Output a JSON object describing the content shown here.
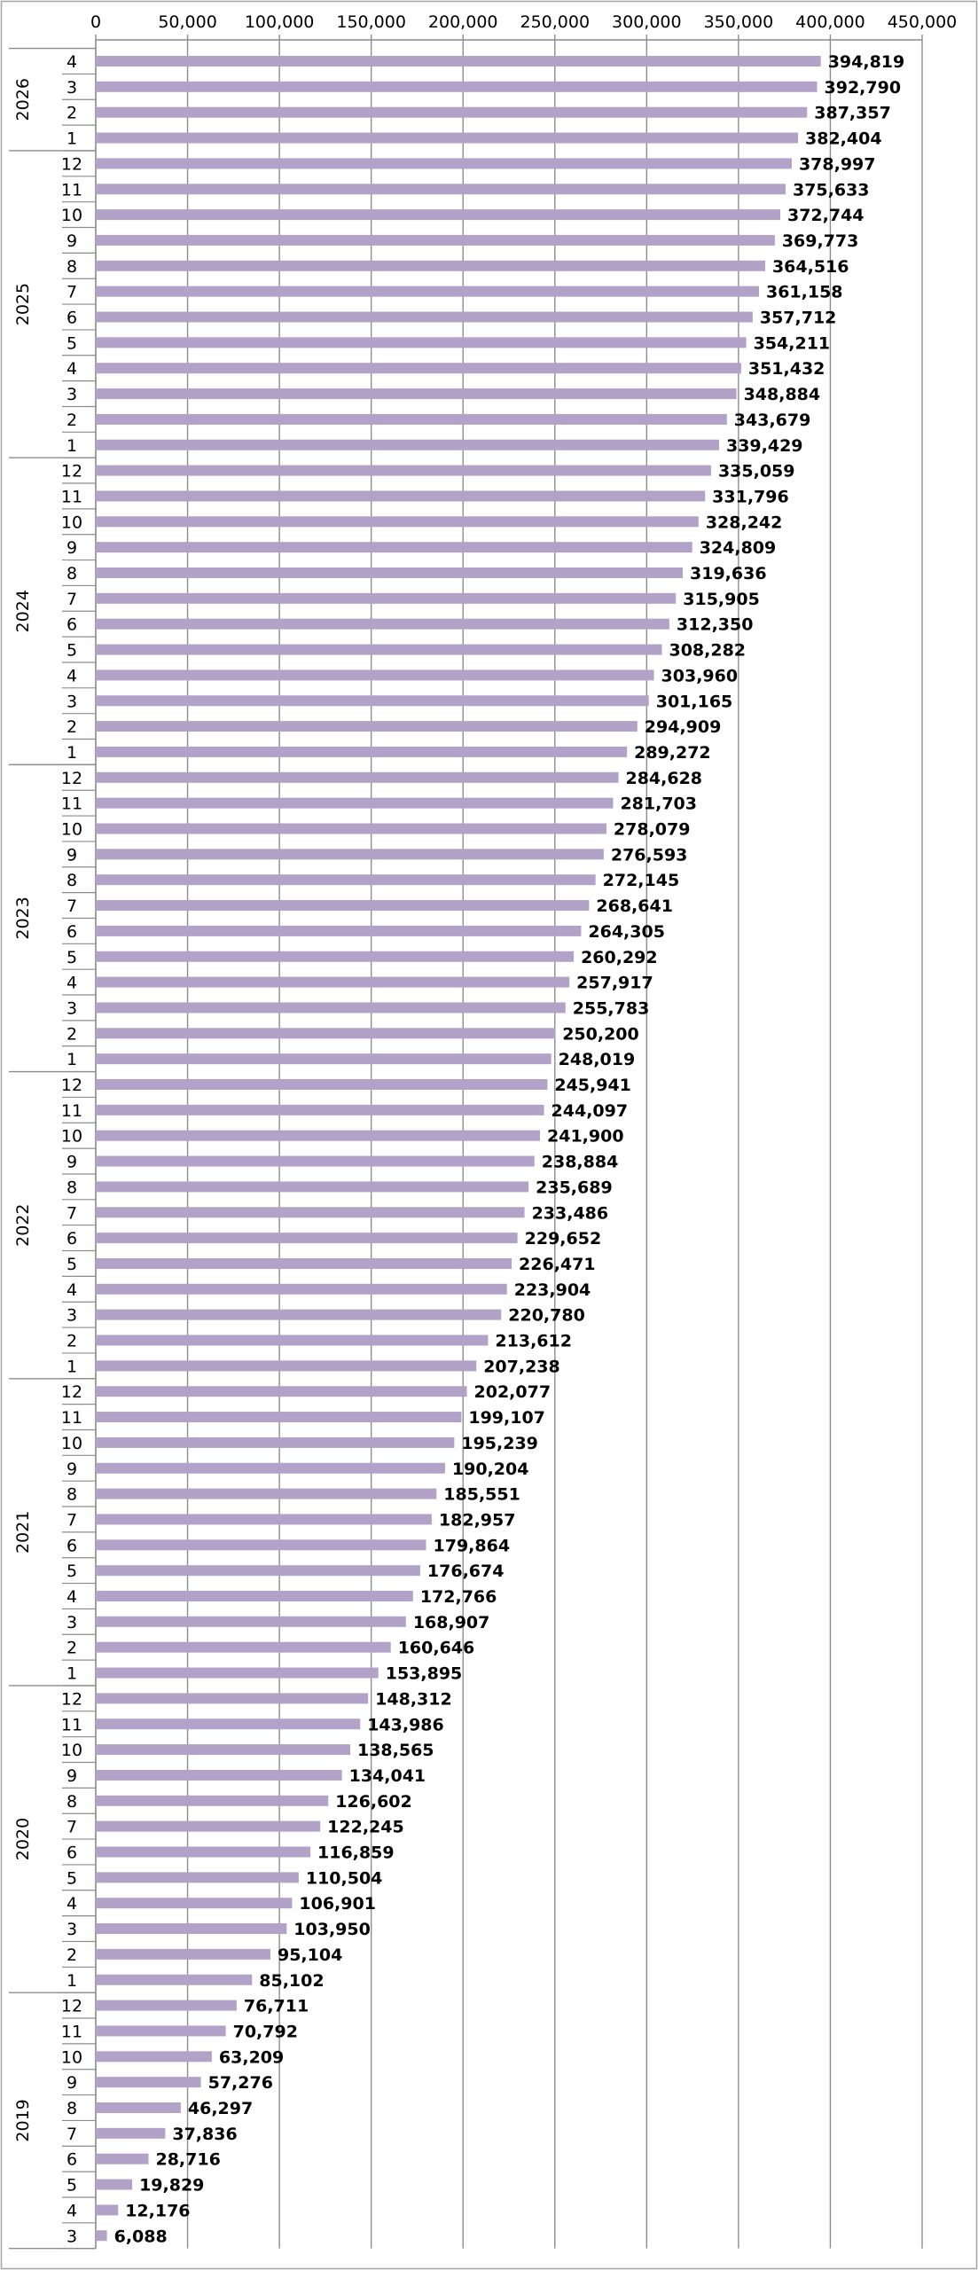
{
  "chart_data": {
    "type": "bar",
    "orientation": "horizontal",
    "title": "",
    "xlabel": "",
    "ylabel": "",
    "xlim": [
      0,
      450000
    ],
    "x_ticks": [
      "0",
      "50,000",
      "100,000",
      "150,000",
      "200,000",
      "250,000",
      "300,000",
      "350,000",
      "400,000",
      "450,000"
    ],
    "x_tick_values": [
      0,
      50000,
      100000,
      150000,
      200000,
      250000,
      300000,
      350000,
      400000,
      450000
    ],
    "grid": true,
    "bar_color": "#b3a2c7",
    "groups": [
      {
        "year": "2026",
        "bars": [
          {
            "month": "4",
            "value": 394819,
            "label": "394,819"
          },
          {
            "month": "3",
            "value": 392790,
            "label": "392,790"
          },
          {
            "month": "2",
            "value": 387357,
            "label": "387,357"
          },
          {
            "month": "1",
            "value": 382404,
            "label": "382,404"
          }
        ]
      },
      {
        "year": "2025",
        "bars": [
          {
            "month": "12",
            "value": 378997,
            "label": "378,997"
          },
          {
            "month": "11",
            "value": 375633,
            "label": "375,633"
          },
          {
            "month": "10",
            "value": 372744,
            "label": "372,744"
          },
          {
            "month": "9",
            "value": 369773,
            "label": "369,773"
          },
          {
            "month": "8",
            "value": 364516,
            "label": "364,516"
          },
          {
            "month": "7",
            "value": 361158,
            "label": "361,158"
          },
          {
            "month": "6",
            "value": 357712,
            "label": "357,712"
          },
          {
            "month": "5",
            "value": 354211,
            "label": "354,211"
          },
          {
            "month": "4",
            "value": 351432,
            "label": "351,432"
          },
          {
            "month": "3",
            "value": 348884,
            "label": "348,884"
          },
          {
            "month": "2",
            "value": 343679,
            "label": "343,679"
          },
          {
            "month": "1",
            "value": 339429,
            "label": "339,429"
          }
        ]
      },
      {
        "year": "2024",
        "bars": [
          {
            "month": "12",
            "value": 335059,
            "label": "335,059"
          },
          {
            "month": "11",
            "value": 331796,
            "label": "331,796"
          },
          {
            "month": "10",
            "value": 328242,
            "label": "328,242"
          },
          {
            "month": "9",
            "value": 324809,
            "label": "324,809"
          },
          {
            "month": "8",
            "value": 319636,
            "label": "319,636"
          },
          {
            "month": "7",
            "value": 315905,
            "label": "315,905"
          },
          {
            "month": "6",
            "value": 312350,
            "label": "312,350"
          },
          {
            "month": "5",
            "value": 308282,
            "label": "308,282"
          },
          {
            "month": "4",
            "value": 303960,
            "label": "303,960"
          },
          {
            "month": "3",
            "value": 301165,
            "label": "301,165"
          },
          {
            "month": "2",
            "value": 294909,
            "label": "294,909"
          },
          {
            "month": "1",
            "value": 289272,
            "label": "289,272"
          }
        ]
      },
      {
        "year": "2023",
        "bars": [
          {
            "month": "12",
            "value": 284628,
            "label": "284,628"
          },
          {
            "month": "11",
            "value": 281703,
            "label": "281,703"
          },
          {
            "month": "10",
            "value": 278079,
            "label": "278,079"
          },
          {
            "month": "9",
            "value": 276593,
            "label": "276,593"
          },
          {
            "month": "8",
            "value": 272145,
            "label": "272,145"
          },
          {
            "month": "7",
            "value": 268641,
            "label": "268,641"
          },
          {
            "month": "6",
            "value": 264305,
            "label": "264,305"
          },
          {
            "month": "5",
            "value": 260292,
            "label": "260,292"
          },
          {
            "month": "4",
            "value": 257917,
            "label": "257,917"
          },
          {
            "month": "3",
            "value": 255783,
            "label": "255,783"
          },
          {
            "month": "2",
            "value": 250200,
            "label": "250,200"
          },
          {
            "month": "1",
            "value": 248019,
            "label": "248,019"
          }
        ]
      },
      {
        "year": "2022",
        "bars": [
          {
            "month": "12",
            "value": 245941,
            "label": "245,941"
          },
          {
            "month": "11",
            "value": 244097,
            "label": "244,097"
          },
          {
            "month": "10",
            "value": 241900,
            "label": "241,900"
          },
          {
            "month": "9",
            "value": 238884,
            "label": "238,884"
          },
          {
            "month": "8",
            "value": 235689,
            "label": "235,689"
          },
          {
            "month": "7",
            "value": 233486,
            "label": "233,486"
          },
          {
            "month": "6",
            "value": 229652,
            "label": "229,652"
          },
          {
            "month": "5",
            "value": 226471,
            "label": "226,471"
          },
          {
            "month": "4",
            "value": 223904,
            "label": "223,904"
          },
          {
            "month": "3",
            "value": 220780,
            "label": "220,780"
          },
          {
            "month": "2",
            "value": 213612,
            "label": "213,612"
          },
          {
            "month": "1",
            "value": 207238,
            "label": "207,238"
          }
        ]
      },
      {
        "year": "2021",
        "bars": [
          {
            "month": "12",
            "value": 202077,
            "label": "202,077"
          },
          {
            "month": "11",
            "value": 199107,
            "label": "199,107"
          },
          {
            "month": "10",
            "value": 195239,
            "label": "195,239"
          },
          {
            "month": "9",
            "value": 190204,
            "label": "190,204"
          },
          {
            "month": "8",
            "value": 185551,
            "label": "185,551"
          },
          {
            "month": "7",
            "value": 182957,
            "label": "182,957"
          },
          {
            "month": "6",
            "value": 179864,
            "label": "179,864"
          },
          {
            "month": "5",
            "value": 176674,
            "label": "176,674"
          },
          {
            "month": "4",
            "value": 172766,
            "label": "172,766"
          },
          {
            "month": "3",
            "value": 168907,
            "label": "168,907"
          },
          {
            "month": "2",
            "value": 160646,
            "label": "160,646"
          },
          {
            "month": "1",
            "value": 153895,
            "label": "153,895"
          }
        ]
      },
      {
        "year": "2020",
        "bars": [
          {
            "month": "12",
            "value": 148312,
            "label": "148,312"
          },
          {
            "month": "11",
            "value": 143986,
            "label": "143,986"
          },
          {
            "month": "10",
            "value": 138565,
            "label": "138,565"
          },
          {
            "month": "9",
            "value": 134041,
            "label": "134,041"
          },
          {
            "month": "8",
            "value": 126602,
            "label": "126,602"
          },
          {
            "month": "7",
            "value": 122245,
            "label": "122,245"
          },
          {
            "month": "6",
            "value": 116859,
            "label": "116,859"
          },
          {
            "month": "5",
            "value": 110504,
            "label": "110,504"
          },
          {
            "month": "4",
            "value": 106901,
            "label": "106,901"
          },
          {
            "month": "3",
            "value": 103950,
            "label": "103,950"
          },
          {
            "month": "2",
            "value": 95104,
            "label": "95,104"
          },
          {
            "month": "1",
            "value": 85102,
            "label": "85,102"
          }
        ]
      },
      {
        "year": "2019",
        "bars": [
          {
            "month": "12",
            "value": 76711,
            "label": "76,711"
          },
          {
            "month": "11",
            "value": 70792,
            "label": "70,792"
          },
          {
            "month": "10",
            "value": 63209,
            "label": "63,209"
          },
          {
            "month": "9",
            "value": 57276,
            "label": "57,276"
          },
          {
            "month": "8",
            "value": 46297,
            "label": "46,297"
          },
          {
            "month": "7",
            "value": 37836,
            "label": "37,836"
          },
          {
            "month": "6",
            "value": 28716,
            "label": "28,716"
          },
          {
            "month": "5",
            "value": 19829,
            "label": "19,829"
          },
          {
            "month": "4",
            "value": 12176,
            "label": "12,176"
          },
          {
            "month": "3",
            "value": 6088,
            "label": "6,088"
          }
        ]
      }
    ]
  }
}
